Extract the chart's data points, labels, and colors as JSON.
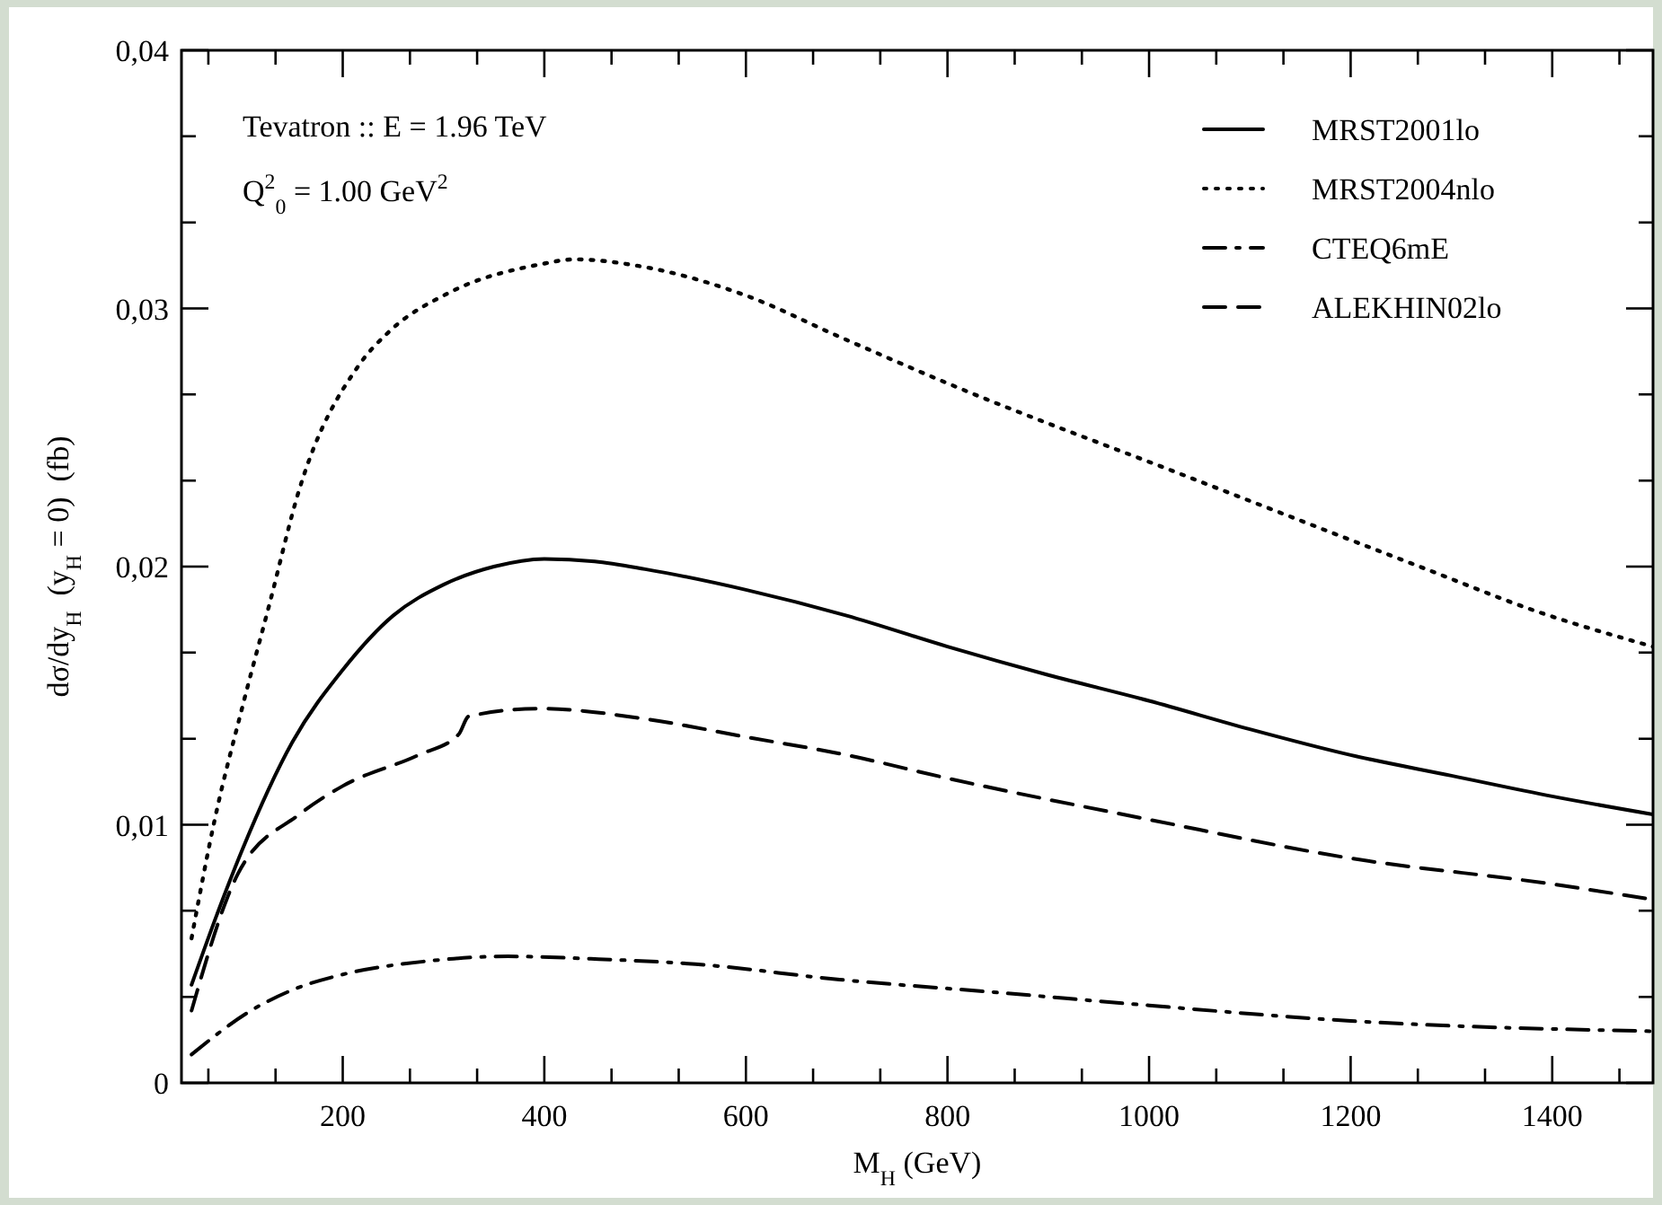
{
  "chart_data": {
    "type": "line",
    "xlabel": "M$_{H}$ (GeV)",
    "ylabel": "dσ/dy$_{H}$  (y$_{H}$ = 0)  (fb)",
    "annotations": [
      "Tevatron :: E = 1.96 TeV",
      "Q$^{2}$$_{0}$ = 1.00 GeV$^{2}$"
    ],
    "xlim": [
      40,
      1500
    ],
    "ylim": [
      0,
      0.04
    ],
    "xticks": [
      {
        "value": 66.67,
        "label": null
      },
      {
        "value": 133.33,
        "label": null
      },
      200,
      {
        "value": 266.67,
        "label": null
      },
      {
        "value": 333.33,
        "label": null
      },
      400,
      {
        "value": 466.67,
        "label": null
      },
      {
        "value": 533.33,
        "label": null
      },
      600,
      {
        "value": 666.67,
        "label": null
      },
      {
        "value": 733.33,
        "label": null
      },
      800,
      {
        "value": 866.67,
        "label": null
      },
      {
        "value": 933.33,
        "label": null
      },
      1000,
      {
        "value": 1066.67,
        "label": null
      },
      {
        "value": 1133.33,
        "label": null
      },
      1200,
      {
        "value": 1266.67,
        "label": null
      },
      {
        "value": 1333.33,
        "label": null
      },
      1400,
      {
        "value": 1466.67,
        "label": null
      }
    ],
    "yticks": [
      0,
      {
        "value": 0.00333,
        "label": null
      },
      {
        "value": 0.00667,
        "label": null
      },
      {
        "value": 0.01,
        "label": "0,01"
      },
      {
        "value": 0.01333,
        "label": null
      },
      {
        "value": 0.01667,
        "label": null
      },
      {
        "value": 0.02,
        "label": "0,02"
      },
      {
        "value": 0.02333,
        "label": null
      },
      {
        "value": 0.02667,
        "label": null
      },
      {
        "value": 0.03,
        "label": "0,03"
      },
      {
        "value": 0.03333,
        "label": null
      },
      {
        "value": 0.03667,
        "label": null
      },
      {
        "value": 0.04,
        "label": "0,04"
      }
    ],
    "grid": false,
    "legend": "top right",
    "series": [
      {
        "name": "MRST2001lo",
        "color": "#000000",
        "line_style": "solid",
        "x": [
          50,
          75,
          100,
          150,
          200,
          250,
          300,
          350,
          400,
          450,
          500,
          600,
          700,
          800,
          900,
          1000,
          1100,
          1200,
          1300,
          1400,
          1500
        ],
        "values": [
          0.0038,
          0.0065,
          0.009,
          0.0132,
          0.016,
          0.0181,
          0.0193,
          0.02,
          0.0203,
          0.0202,
          0.0199,
          0.0191,
          0.0181,
          0.0169,
          0.0158,
          0.0148,
          0.0137,
          0.0127,
          0.0119,
          0.0111,
          0.0104
        ]
      },
      {
        "name": "MRST2004nlo",
        "color": "#000000",
        "line_style": "dotted",
        "x": [
          50,
          73,
          100,
          127,
          157,
          216,
          246,
          305,
          395,
          430,
          500,
          600,
          693,
          800,
          1037,
          1275,
          1382,
          1500
        ],
        "values": [
          0.0056,
          0.0102,
          0.0145,
          0.0185,
          0.023,
          0.0278,
          0.0291,
          0.0306,
          0.0317,
          0.0319,
          0.0316,
          0.0305,
          0.0289,
          0.0271,
          0.0235,
          0.0199,
          0.0183,
          0.0169
        ]
      },
      {
        "name": "CTEQ6mE",
        "color": "#000000",
        "line_style": "dashdot",
        "x": [
          50,
          109,
          150,
          200,
          280,
          364,
          450,
          550,
          693,
          850,
          1000,
          1200,
          1500
        ],
        "values": [
          0.0011,
          0.0028,
          0.0036,
          0.0042,
          0.0047,
          0.0049,
          0.0048,
          0.0046,
          0.004,
          0.0035,
          0.003,
          0.0024,
          0.002
        ]
      },
      {
        "name": "ALEKHIN02lo",
        "color": "#000000",
        "line_style": "dashed",
        "x": [
          50,
          96,
          157,
          200,
          275,
          315,
          325,
          395,
          500,
          600,
          700,
          800,
          1000,
          1200,
          1400,
          1500
        ],
        "values": [
          0.0028,
          0.0081,
          0.0104,
          0.0115,
          0.0127,
          0.0135,
          0.0142,
          0.0145,
          0.0141,
          0.0134,
          0.0127,
          0.0118,
          0.0102,
          0.0087,
          0.0077,
          0.0071
        ]
      }
    ]
  }
}
